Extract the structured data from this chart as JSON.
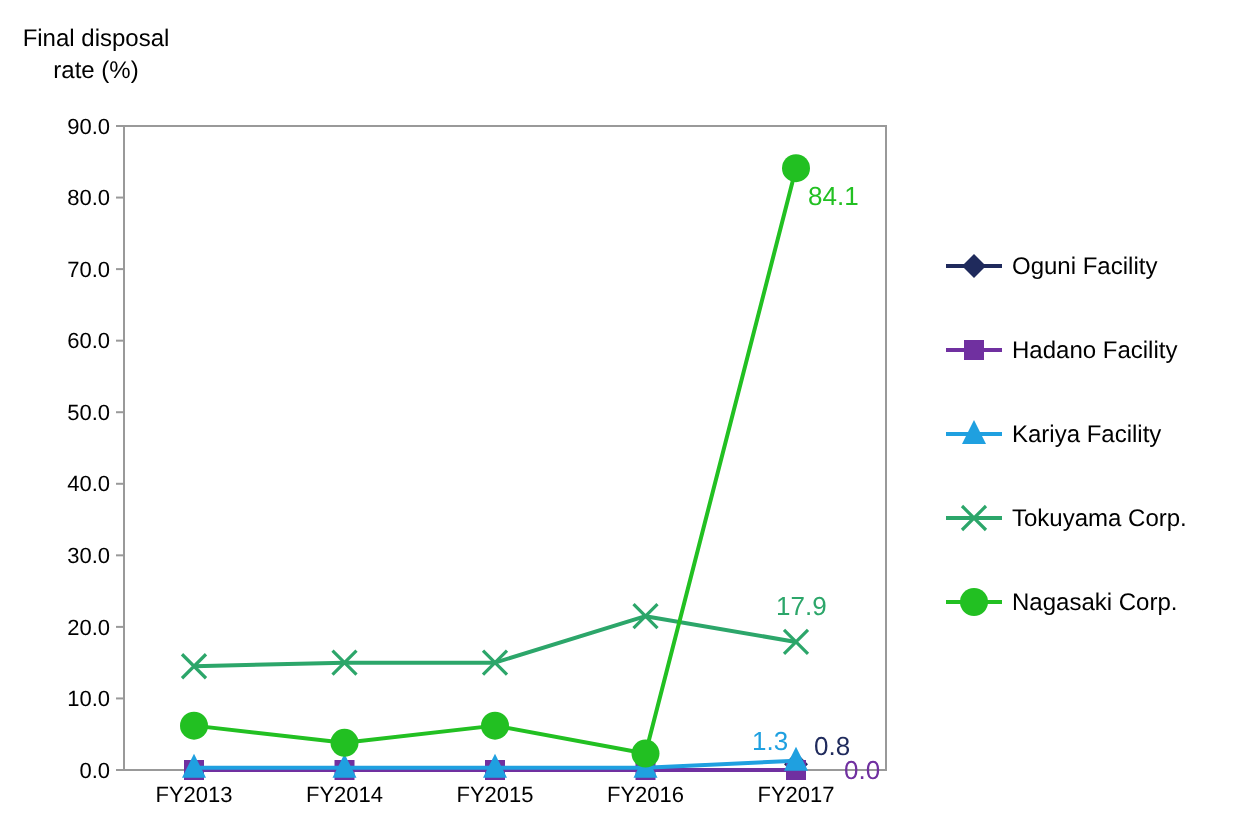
{
  "chart_data": {
    "type": "line",
    "ylabel": "Final disposal rate (%)",
    "categories": [
      "FY2013",
      "FY2014",
      "FY2015",
      "FY2016",
      "FY2017"
    ],
    "ylim": [
      0,
      90
    ],
    "yticks": [
      {
        "value": 0,
        "label": "0.0"
      },
      {
        "value": 10,
        "label": "10.0"
      },
      {
        "value": 20,
        "label": "20.0"
      },
      {
        "value": 30,
        "label": "30.0"
      },
      {
        "value": 40,
        "label": "40.0"
      },
      {
        "value": 50,
        "label": "50.0"
      },
      {
        "value": 60,
        "label": "60.0"
      },
      {
        "value": 70,
        "label": "70.0"
      },
      {
        "value": 80,
        "label": "80.0"
      },
      {
        "value": 90,
        "label": "90.0"
      }
    ],
    "grid": false,
    "legend": "right",
    "series": [
      {
        "name": "Oguni Facility",
        "color": "#1f2a5c",
        "marker": "diamond",
        "values": [
          null,
          null,
          null,
          null,
          0.8
        ],
        "value_labels": [
          null,
          null,
          null,
          null,
          "0.8"
        ]
      },
      {
        "name": "Hadano Facility",
        "color": "#7030a0",
        "marker": "square",
        "values": [
          0.0,
          0.0,
          0.0,
          0.0,
          0.0
        ],
        "value_labels": [
          null,
          null,
          null,
          null,
          "0.0"
        ]
      },
      {
        "name": "Kariya Facility",
        "color": "#1fa0e0",
        "marker": "triangle",
        "values": [
          0.3,
          0.3,
          0.3,
          0.3,
          1.3
        ],
        "value_labels": [
          null,
          null,
          null,
          null,
          "1.3"
        ]
      },
      {
        "name": "Tokuyama Corp.",
        "color": "#2ca66a",
        "marker": "cross",
        "values": [
          14.5,
          15.0,
          15.0,
          21.5,
          17.9
        ],
        "value_labels": [
          null,
          null,
          null,
          null,
          "17.9"
        ]
      },
      {
        "name": "Nagasaki Corp.",
        "color": "#22c022",
        "marker": "circle",
        "values": [
          6.2,
          3.8,
          6.2,
          2.3,
          84.1
        ],
        "value_labels": [
          null,
          null,
          null,
          null,
          "84.1"
        ]
      }
    ]
  }
}
